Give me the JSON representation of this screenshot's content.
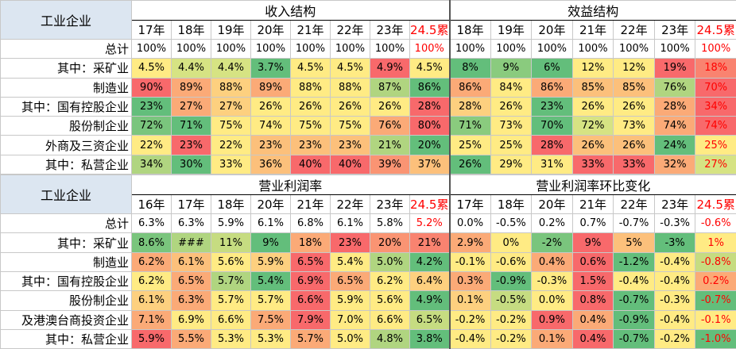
{
  "tables": [
    {
      "corner": "工业企业",
      "groups": [
        {
          "title": "收入结构",
          "columns": [
            "17年",
            "18年",
            "19年",
            "20年",
            "21年",
            "22年",
            "23年",
            "24.5累"
          ]
        },
        {
          "title": "效益结构",
          "columns": [
            "18年",
            "19年",
            "20年",
            "21年",
            "22年",
            "23年",
            "24.5累"
          ]
        }
      ],
      "header_red_columns": [
        7,
        14
      ],
      "rows": [
        {
          "label": "总计",
          "cells": [
            "100%",
            "100%",
            "100%",
            "100%",
            "100%",
            "100%",
            "100%",
            "100%",
            "100%",
            "100%",
            "100%",
            "100%",
            "100%",
            "100%",
            "100%"
          ],
          "colors": [
            "#ffffff",
            "#ffffff",
            "#ffffff",
            "#ffffff",
            "#ffffff",
            "#ffffff",
            "#ffffff",
            "#ffffff",
            "#ffffff",
            "#ffffff",
            "#ffffff",
            "#ffffff",
            "#ffffff",
            "#ffffff",
            "#ffffff"
          ],
          "red_text_columns": [
            7,
            14
          ]
        },
        {
          "label": "其中：采矿业",
          "cells": [
            "4.5%",
            "4.4%",
            "4.4%",
            "3.7%",
            "4.5%",
            "4.5%",
            "4.9%",
            "4.5%",
            "8%",
            "9%",
            "6%",
            "12%",
            "12%",
            "19%",
            "18%"
          ],
          "colors": [
            "#ffeb84",
            "#d6e383",
            "#d6e383",
            "#63be7b",
            "#ffeb84",
            "#ffeb84",
            "#f8696b",
            "#ffeb84",
            "#63be7b",
            "#8acb7e",
            "#63be7b",
            "#ffeb84",
            "#ffeb84",
            "#f8696b",
            "#f98370"
          ],
          "red_text_columns": [
            14
          ]
        },
        {
          "label": "制造业",
          "cells": [
            "90%",
            "89%",
            "88%",
            "89%",
            "88%",
            "88%",
            "87%",
            "86%",
            "86%",
            "84%",
            "86%",
            "85%",
            "85%",
            "76%",
            "70%"
          ],
          "colors": [
            "#f8696b",
            "#fbaa77",
            "#fdd07f",
            "#fbaa77",
            "#ffeb84",
            "#ffeb84",
            "#b0d580",
            "#63be7b",
            "#fbaa77",
            "#ffeb84",
            "#fbaa77",
            "#fcc07b",
            "#fcc07b",
            "#b0d580",
            "#f8696b"
          ],
          "red_text_columns": [
            14
          ]
        },
        {
          "label": "其中：国有控股企业",
          "cells": [
            "23%",
            "27%",
            "27%",
            "26%",
            "26%",
            "26%",
            "26%",
            "28%",
            "28%",
            "26%",
            "23%",
            "26%",
            "26%",
            "28%",
            "34%"
          ],
          "colors": [
            "#63be7b",
            "#fbaa77",
            "#fdd07f",
            "#ffeb84",
            "#ffeb84",
            "#ffeb84",
            "#ffeb84",
            "#f8696b",
            "#fdd07f",
            "#ffeb84",
            "#63be7b",
            "#ffeb84",
            "#ffeb84",
            "#fbaa77",
            "#f8696b"
          ],
          "red_text_columns": [
            14
          ]
        },
        {
          "label": "股份制企业",
          "cells": [
            "72%",
            "71%",
            "75%",
            "74%",
            "75%",
            "75%",
            "76%",
            "80%",
            "71%",
            "73%",
            "70%",
            "72%",
            "73%",
            "74%",
            "74%"
          ],
          "colors": [
            "#7ac57d",
            "#63be7b",
            "#ffeb84",
            "#ffeb84",
            "#ffeb84",
            "#ffeb84",
            "#fbaa77",
            "#f8696b",
            "#8acb7e",
            "#ffeb84",
            "#63be7b",
            "#d6e383",
            "#ffeb84",
            "#fbaa77",
            "#f8696b"
          ],
          "red_text_columns": [
            14
          ]
        },
        {
          "label": "外商及三资企业",
          "cells": [
            "22%",
            "23%",
            "22%",
            "23%",
            "23%",
            "23%",
            "21%",
            "20%",
            "25%",
            "25%",
            "28%",
            "26%",
            "26%",
            "24%",
            "25%"
          ],
          "colors": [
            "#ffeb84",
            "#f8696b",
            "#ffeb84",
            "#fcc07b",
            "#fcc07b",
            "#fcc07b",
            "#b0d580",
            "#63be7b",
            "#ffeb84",
            "#ffeb84",
            "#f8696b",
            "#fcc07b",
            "#fcc07b",
            "#63be7b",
            "#ffeb84"
          ],
          "red_text_columns": [
            14
          ]
        },
        {
          "label": "其中：私营企业",
          "cells": [
            "34%",
            "30%",
            "33%",
            "36%",
            "40%",
            "40%",
            "39%",
            "37%",
            "26%",
            "29%",
            "31%",
            "33%",
            "33%",
            "32%",
            "27%"
          ],
          "colors": [
            "#b0d580",
            "#63be7b",
            "#ffeb84",
            "#fcc07b",
            "#f8696b",
            "#f8696b",
            "#fa9473",
            "#fcc07b",
            "#63be7b",
            "#ffeb84",
            "#ffeb84",
            "#f8696b",
            "#f8696b",
            "#fbaa77",
            "#d6e383"
          ],
          "red_text_columns": [
            14
          ]
        }
      ]
    },
    {
      "corner": "工业企业",
      "groups": [
        {
          "title": "营业利润率",
          "columns": [
            "16年",
            "17年",
            "18年",
            "20年",
            "21年",
            "22年",
            "23年",
            "24.5累"
          ]
        },
        {
          "title": "营业利润率环比变化",
          "columns": [
            "17年",
            "18年",
            "20年",
            "21年",
            "22年",
            "23年",
            "24.5累"
          ]
        }
      ],
      "header_red_columns": [
        7,
        14
      ],
      "rows": [
        {
          "label": "总计",
          "cells": [
            "6.3%",
            "6.3%",
            "5.9%",
            "6.1%",
            "6.8%",
            "6.1%",
            "5.8%",
            "5.2%",
            "0.0%",
            "-0.5%",
            "0.2%",
            "0.7%",
            "-0.7%",
            "-0.3%",
            "-0.6%"
          ],
          "colors": [
            "#ffffff",
            "#ffffff",
            "#ffffff",
            "#ffffff",
            "#ffffff",
            "#ffffff",
            "#ffffff",
            "#ffffff",
            "#ffffff",
            "#ffffff",
            "#ffffff",
            "#ffffff",
            "#ffffff",
            "#ffffff",
            "#ffffff"
          ],
          "red_text_columns": [
            7,
            14
          ]
        },
        {
          "label": "其中：采矿业",
          "cells": [
            "8.6%",
            "###",
            "11%",
            "9%",
            "18%",
            "23%",
            "20%",
            "21%",
            "2.9%",
            "0%",
            "-2%",
            "9%",
            "5%",
            "-3%",
            "1%"
          ],
          "colors": [
            "#7ac57d",
            "#b0d580",
            "#c6dc81",
            "#63be7b",
            "#fbaa77",
            "#f8696b",
            "#fa9473",
            "#f98370",
            "#fbaa77",
            "#ffeb84",
            "#7ac57d",
            "#f8696b",
            "#fcc07b",
            "#63be7b",
            "#ffeb84"
          ],
          "red_text_columns": [
            14
          ]
        },
        {
          "label": "制造业",
          "cells": [
            "6.2%",
            "6.1%",
            "5.6%",
            "5.9%",
            "6.5%",
            "5.4%",
            "5.0%",
            "4.2%",
            "-0.1%",
            "-0.6%",
            "0.4%",
            "0.6%",
            "-1.2%",
            "-0.4%",
            "-0.8%"
          ],
          "colors": [
            "#fbaa77",
            "#fcc07b",
            "#ffeb84",
            "#fdd07f",
            "#f8696b",
            "#ffeb84",
            "#b0d580",
            "#63be7b",
            "#ffeb84",
            "#ffeb84",
            "#fbaa77",
            "#f8696b",
            "#63be7b",
            "#ffeb84",
            "#c6dc81"
          ],
          "red_text_columns": [
            14
          ]
        },
        {
          "label": "其中：国有控股企业",
          "cells": [
            "6.2%",
            "6.5%",
            "5.7%",
            "5.4%",
            "6.9%",
            "6.5%",
            "6.2%",
            "6.4%",
            "0.3%",
            "-0.9%",
            "-0.3%",
            "1.5%",
            "-0.4%",
            "-0.4%",
            "0.2%"
          ],
          "colors": [
            "#ffeb84",
            "#fbaa77",
            "#b0d580",
            "#63be7b",
            "#f8696b",
            "#fbaa77",
            "#ffeb84",
            "#fdd07f",
            "#fbaa77",
            "#63be7b",
            "#ffeb84",
            "#f8696b",
            "#ffeb84",
            "#ffeb84",
            "#fbaa77"
          ],
          "red_text_columns": [
            14
          ]
        },
        {
          "label": "股份制企业",
          "cells": [
            "6.1%",
            "6.3%",
            "5.7%",
            "5.7%",
            "6.6%",
            "5.9%",
            "5.6%",
            "4.9%",
            "0.1%",
            "-0.5%",
            "0.0%",
            "0.8%",
            "-0.7%",
            "-0.3%",
            "-0.7%"
          ],
          "colors": [
            "#fdd07f",
            "#fbaa77",
            "#ffeb84",
            "#ffeb84",
            "#f8696b",
            "#ffeb84",
            "#ffeb84",
            "#63be7b",
            "#fdd07f",
            "#c6dc81",
            "#ffeb84",
            "#f8696b",
            "#63be7b",
            "#ffeb84",
            "#63be7b"
          ],
          "red_text_columns": [
            14
          ]
        },
        {
          "label": "及港澳台商投资企业",
          "cells": [
            "7.1%",
            "6.9%",
            "6.6%",
            "7.5%",
            "7.9%",
            "7.0%",
            "6.6%",
            "6.5%",
            "-0.2%",
            "-0.2%",
            "0.9%",
            "0.4%",
            "-0.9%",
            "-0.4%",
            "-0.1%"
          ],
          "colors": [
            "#fbaa77",
            "#ffeb84",
            "#ffeb84",
            "#fbaa77",
            "#f8696b",
            "#ffeb84",
            "#ffeb84",
            "#c6dc81",
            "#ffeb84",
            "#ffeb84",
            "#f8696b",
            "#fbaa77",
            "#63be7b",
            "#ffeb84",
            "#ffeb84"
          ],
          "red_text_columns": [
            14
          ]
        },
        {
          "label": "其中：私营企业",
          "cells": [
            "5.9%",
            "5.5%",
            "5.3%",
            "5.3%",
            "5.7%",
            "5.0%",
            "4.8%",
            "3.8%",
            "-0.4%",
            "-0.2%",
            "0.1%",
            "0.4%",
            "-0.7%",
            "-0.2%",
            "-1.0%"
          ],
          "colors": [
            "#f8696b",
            "#fbaa77",
            "#ffeb84",
            "#ffeb84",
            "#fbaa77",
            "#ffeb84",
            "#b0d580",
            "#63be7b",
            "#ffeb84",
            "#ffeb84",
            "#fbaa77",
            "#f8696b",
            "#63be7b",
            "#ffeb84",
            "#63be7b"
          ],
          "red_text_columns": [
            14
          ]
        }
      ]
    }
  ]
}
